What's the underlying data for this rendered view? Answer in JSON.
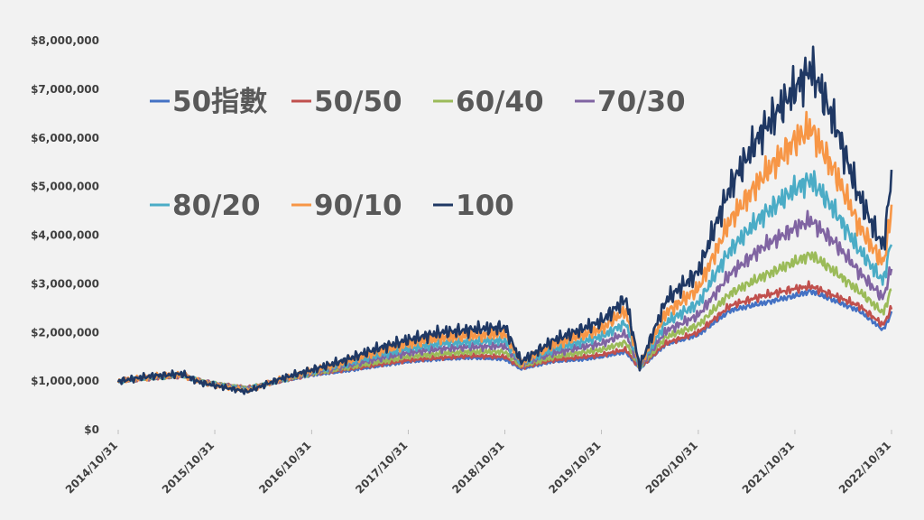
{
  "chart_data": {
    "type": "line",
    "title": "",
    "xlabel": "",
    "ylabel": "",
    "ylim": [
      0,
      8000000
    ],
    "y_ticks": [
      0,
      1000000,
      2000000,
      3000000,
      4000000,
      5000000,
      6000000,
      7000000,
      8000000
    ],
    "y_tick_labels": [
      "$0",
      "$1,000,000",
      "$2,000,000",
      "$3,000,000",
      "$4,000,000",
      "$5,000,000",
      "$6,000,000",
      "$7,000,000",
      "$8,000,000"
    ],
    "x_tick_labels": [
      "2014/10/31",
      "2015/10/31",
      "2016/10/31",
      "2017/10/31",
      "2018/10/31",
      "2019/10/31",
      "2020/10/31",
      "2021/10/31",
      "2022/10/31"
    ],
    "grid": false,
    "legend_position": "top-left",
    "x": [
      "2014/10/31",
      "2015/02/28",
      "2015/06/30",
      "2015/08/31",
      "2015/10/31",
      "2016/02/29",
      "2016/06/30",
      "2016/10/31",
      "2017/02/28",
      "2017/06/30",
      "2017/10/31",
      "2018/02/28",
      "2018/06/30",
      "2018/10/31",
      "2018/12/31",
      "2019/04/30",
      "2019/08/31",
      "2019/10/31",
      "2020/01/31",
      "2020/03/23",
      "2020/06/30",
      "2020/10/31",
      "2021/02/28",
      "2021/06/30",
      "2021/10/31",
      "2021/12/31",
      "2022/03/31",
      "2022/06/30",
      "2022/09/30",
      "2022/10/31"
    ],
    "series": [
      {
        "name": "50指數",
        "color": "#4472c4",
        "values": [
          1000000,
          1050000,
          1100000,
          1020000,
          950000,
          870000,
          980000,
          1120000,
          1200000,
          1300000,
          1400000,
          1450000,
          1480000,
          1450000,
          1250000,
          1400000,
          1450000,
          1500000,
          1600000,
          1250000,
          1750000,
          1950000,
          2450000,
          2600000,
          2750000,
          2850000,
          2650000,
          2450000,
          2050000,
          2400000
        ]
      },
      {
        "name": "50/50",
        "color": "#c0504d",
        "values": [
          1000000,
          1050000,
          1100000,
          1020000,
          950000,
          870000,
          990000,
          1140000,
          1230000,
          1330000,
          1430000,
          1480000,
          1520000,
          1500000,
          1280000,
          1430000,
          1500000,
          1540000,
          1650000,
          1270000,
          1780000,
          2000000,
          2550000,
          2750000,
          2900000,
          2950000,
          2750000,
          2550000,
          2150000,
          2500000
        ]
      },
      {
        "name": "60/40",
        "color": "#9bbb59",
        "values": [
          1000000,
          1060000,
          1110000,
          1020000,
          950000,
          860000,
          1000000,
          1150000,
          1260000,
          1380000,
          1500000,
          1560000,
          1600000,
          1600000,
          1310000,
          1490000,
          1600000,
          1640000,
          1800000,
          1280000,
          1900000,
          2150000,
          2800000,
          3150000,
          3450000,
          3600000,
          3250000,
          2850000,
          2400000,
          2900000
        ]
      },
      {
        "name": "70/30",
        "color": "#8064a2",
        "values": [
          1000000,
          1070000,
          1120000,
          1010000,
          940000,
          840000,
          1010000,
          1170000,
          1300000,
          1450000,
          1580000,
          1660000,
          1700000,
          1720000,
          1340000,
          1570000,
          1710000,
          1770000,
          1980000,
          1290000,
          2030000,
          2350000,
          3200000,
          3750000,
          4150000,
          4300000,
          3850000,
          3250000,
          2700000,
          3350000
        ]
      },
      {
        "name": "80/20",
        "color": "#4bacc6",
        "values": [
          1000000,
          1080000,
          1130000,
          1000000,
          930000,
          820000,
          1020000,
          1190000,
          1340000,
          1520000,
          1670000,
          1770000,
          1810000,
          1840000,
          1360000,
          1650000,
          1830000,
          1910000,
          2200000,
          1300000,
          2200000,
          2600000,
          3700000,
          4400000,
          4950000,
          5150000,
          4500000,
          3700000,
          3050000,
          3900000
        ]
      },
      {
        "name": "90/10",
        "color": "#f79646",
        "values": [
          1000000,
          1090000,
          1140000,
          990000,
          920000,
          800000,
          1030000,
          1210000,
          1380000,
          1590000,
          1760000,
          1880000,
          1930000,
          1970000,
          1380000,
          1740000,
          1960000,
          2070000,
          2450000,
          1300000,
          2400000,
          2900000,
          4300000,
          5200000,
          5950000,
          6200000,
          5300000,
          4200000,
          3400000,
          4500000
        ]
      },
      {
        "name": "100",
        "color": "#1f3864",
        "values": [
          1000000,
          1100000,
          1150000,
          980000,
          910000,
          780000,
          1040000,
          1230000,
          1420000,
          1660000,
          1850000,
          2000000,
          2060000,
          2110000,
          1400000,
          1830000,
          2100000,
          2230000,
          2700000,
          1300000,
          2650000,
          3250000,
          5000000,
          6150000,
          7000000,
          7450000,
          6300000,
          4800000,
          3750000,
          5200000
        ]
      }
    ]
  }
}
